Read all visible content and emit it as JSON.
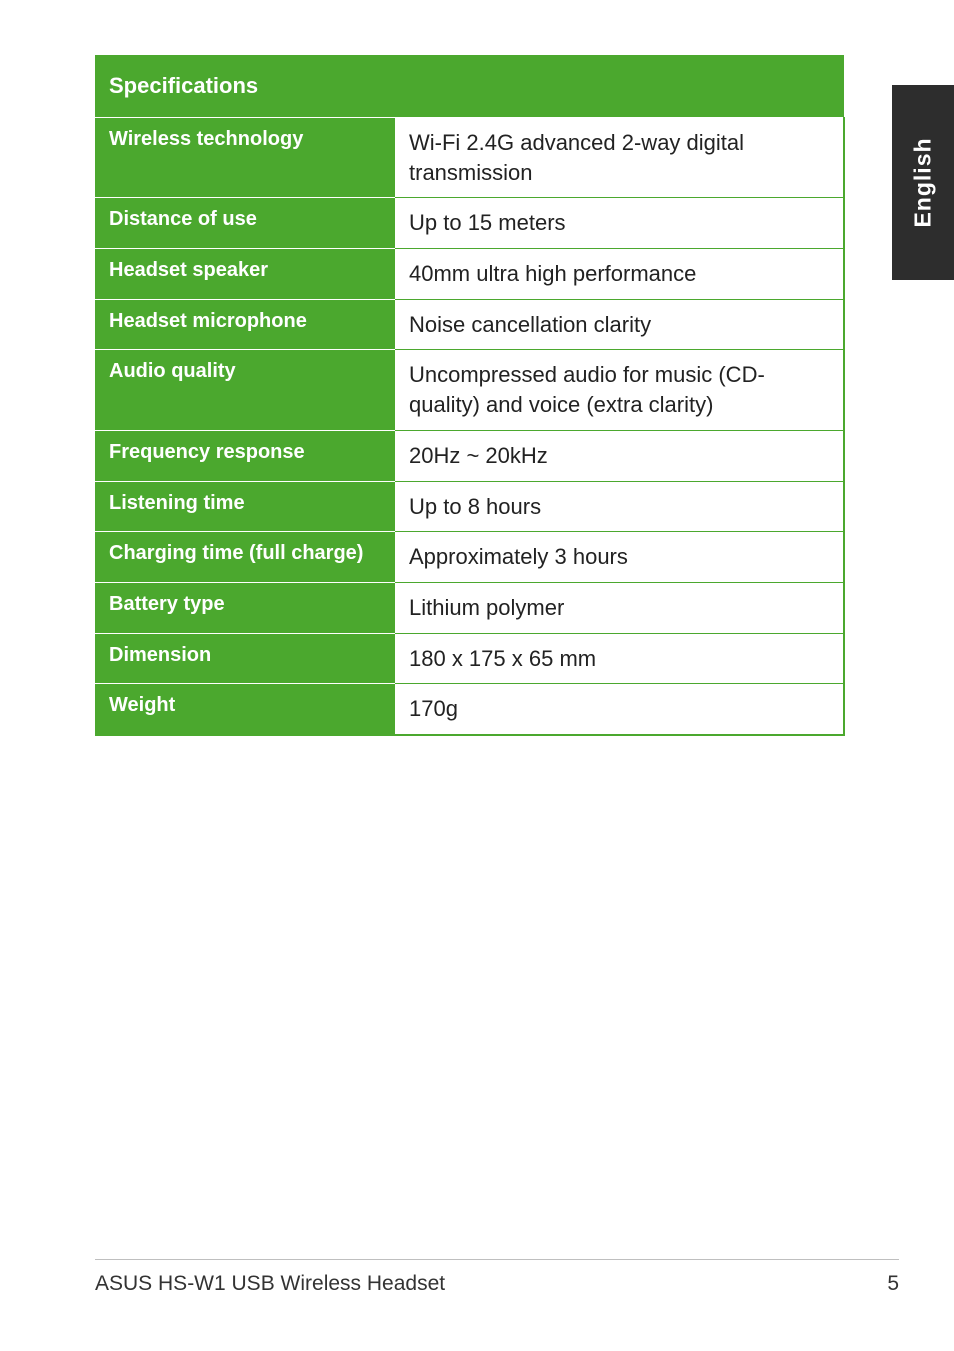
{
  "language_tab": "English",
  "table": {
    "header": "Specifications",
    "rows": [
      {
        "label": "Wireless technology",
        "value": "Wi-Fi 2.4G advanced 2-way digital transmission"
      },
      {
        "label": "Distance of use",
        "value": "Up to 15 meters"
      },
      {
        "label": "Headset speaker",
        "value": "40mm ultra high performance"
      },
      {
        "label": "Headset microphone",
        "value": "Noise cancellation clarity"
      },
      {
        "label": "Audio quality",
        "value": "Uncompressed audio for music (CD-quality) and voice (extra clarity)"
      },
      {
        "label": "Frequency response",
        "value": "20Hz ~ 20kHz"
      },
      {
        "label": "Listening time",
        "value": "Up to 8 hours"
      },
      {
        "label": "Charging time (full charge)",
        "value": "Approximately 3 hours"
      },
      {
        "label": "Battery type",
        "value": "Lithium polymer"
      },
      {
        "label": "Dimension",
        "value": "180 x 175 x 65 mm"
      },
      {
        "label": "Weight",
        "value": "170g"
      }
    ],
    "colors": {
      "header_bg": "#4ba82e",
      "header_text": "#ffffff",
      "label_bg": "#4ba82e",
      "label_text": "#ffffff",
      "value_bg": "#ffffff",
      "value_text": "#222222",
      "border": "#4ba82e"
    }
  },
  "footer": {
    "title": "ASUS HS-W1 USB Wireless Headset",
    "page_number": "5"
  }
}
